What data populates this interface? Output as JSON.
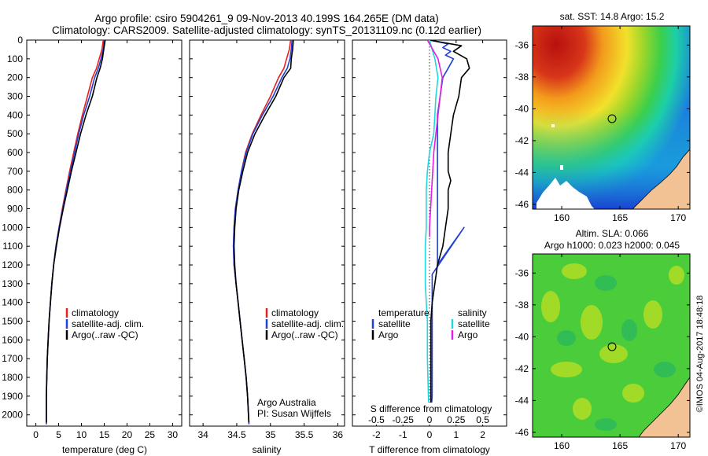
{
  "header": {
    "line1": "Argo profile: csiro 5904261_9 09-Nov-2013 40.199S 164.265E (DM data)",
    "line2": "Climatology: CARS2009. Satellite-adjusted climatology: synTS_20131109.nc (0.12d earlier)"
  },
  "colors": {
    "climatology": "#e8211d",
    "satellite": "#1f3fd6",
    "argo": "#000000",
    "sat_salinity": "#22d6e0",
    "argo_salinity": "#e020e0",
    "land": "#f2c295",
    "map_no_data": "#ffffff"
  },
  "depth_ticks": [
    "0",
    "100",
    "200",
    "300",
    "400",
    "500",
    "600",
    "700",
    "800",
    "900",
    "1000",
    "1100",
    "1200",
    "1300",
    "1400",
    "1500",
    "1600",
    "1700",
    "1800",
    "1900",
    "2000"
  ],
  "chart_data": [
    {
      "type": "line",
      "id": "temperature_profile",
      "xlabel": "temperature (deg C)",
      "ylabel": "",
      "xlim": [
        -2,
        32
      ],
      "ylim": [
        2060,
        0
      ],
      "xticks": [
        "0",
        "5",
        "10",
        "15",
        "20",
        "25",
        "30"
      ],
      "legend": [
        "climatology",
        "satellite-adj. clim.",
        "Argo(..raw -QC)"
      ],
      "legend_position": "bottom-center",
      "series": [
        {
          "name": "climatology",
          "color": "#e8211d",
          "x": [
            14.8,
            14.5,
            13.9,
            13.3,
            12.4,
            11.3,
            10.2,
            9.2,
            8.3,
            7.4,
            6.6,
            5.8,
            5.1,
            4.4,
            3.9,
            3.5,
            3.2,
            2.9,
            2.7,
            2.5,
            2.4,
            2.3,
            2.3
          ],
          "y": [
            0,
            50,
            100,
            150,
            200,
            300,
            400,
            500,
            600,
            700,
            800,
            900,
            1000,
            1100,
            1200,
            1300,
            1400,
            1500,
            1600,
            1700,
            1800,
            1900,
            2050
          ]
        },
        {
          "name": "satellite-adj. clim.",
          "color": "#1f3fd6",
          "x": [
            15.0,
            14.8,
            14.3,
            13.7,
            12.9,
            11.8,
            10.5,
            9.4,
            8.5,
            7.6,
            6.7,
            5.9,
            5.1,
            4.4,
            3.9,
            3.5,
            3.2,
            2.9,
            2.7,
            2.5,
            2.4,
            2.3,
            2.3
          ],
          "y": [
            0,
            50,
            100,
            150,
            200,
            300,
            400,
            500,
            600,
            700,
            800,
            900,
            1000,
            1100,
            1200,
            1300,
            1400,
            1500,
            1600,
            1700,
            1800,
            1900,
            2050
          ]
        },
        {
          "name": "Argo(..raw -QC)",
          "color": "#000000",
          "x": [
            15.2,
            14.9,
            14.6,
            14.1,
            13.4,
            12.4,
            11.0,
            9.8,
            8.8,
            7.8,
            6.9,
            6.0,
            5.2,
            4.5,
            3.9,
            3.5,
            3.2,
            2.9,
            2.7,
            2.5,
            2.4,
            2.3,
            2.3
          ],
          "y": [
            0,
            50,
            100,
            150,
            200,
            300,
            400,
            500,
            600,
            700,
            800,
            900,
            1000,
            1100,
            1200,
            1300,
            1400,
            1500,
            1600,
            1700,
            1800,
            1900,
            2040
          ]
        }
      ]
    },
    {
      "type": "line",
      "id": "salinity_profile",
      "xlabel": "salinity",
      "ylabel": "",
      "xlim": [
        33.8,
        36.1
      ],
      "ylim": [
        2060,
        0
      ],
      "xticks": [
        "34",
        "34.5",
        "35",
        "35.5",
        "36"
      ],
      "legend": [
        "climatology",
        "satellite-adj. clim.",
        "Argo(..raw -QC)"
      ],
      "legend_position": "bottom-right",
      "series": [
        {
          "name": "climatology",
          "color": "#e8211d",
          "x": [
            35.3,
            35.28,
            35.24,
            35.2,
            35.12,
            35.0,
            34.86,
            34.73,
            34.63,
            34.57,
            34.52,
            34.48,
            34.46,
            34.45,
            34.46,
            34.49,
            34.52,
            34.55,
            34.58,
            34.61,
            34.64,
            34.66,
            34.68
          ],
          "y": [
            0,
            50,
            100,
            150,
            200,
            300,
            400,
            500,
            600,
            700,
            800,
            900,
            1000,
            1100,
            1200,
            1300,
            1400,
            1500,
            1600,
            1700,
            1800,
            1900,
            2050
          ]
        },
        {
          "name": "satellite-adj. clim.",
          "color": "#1f3fd6",
          "x": [
            35.32,
            35.31,
            35.29,
            35.25,
            35.17,
            35.04,
            34.88,
            34.74,
            34.64,
            34.57,
            34.52,
            34.48,
            34.46,
            34.45,
            34.46,
            34.49,
            34.52,
            34.55,
            34.58,
            34.61,
            34.64,
            34.66,
            34.68
          ],
          "y": [
            0,
            50,
            100,
            150,
            200,
            300,
            400,
            500,
            600,
            700,
            800,
            900,
            1000,
            1100,
            1200,
            1300,
            1400,
            1500,
            1600,
            1700,
            1800,
            1900,
            2050
          ]
        },
        {
          "name": "Argo(..raw -QC)",
          "color": "#000000",
          "x": [
            35.34,
            35.33,
            35.31,
            35.3,
            35.2,
            35.08,
            34.92,
            34.77,
            34.66,
            34.59,
            34.53,
            34.49,
            34.47,
            34.46,
            34.47,
            34.49,
            34.52,
            34.55,
            34.58,
            34.61,
            34.64,
            34.66,
            34.68
          ],
          "y": [
            0,
            50,
            100,
            150,
            200,
            300,
            400,
            500,
            600,
            700,
            800,
            900,
            1000,
            1100,
            1200,
            1300,
            1400,
            1500,
            1600,
            1700,
            1800,
            1900,
            2040
          ]
        }
      ],
      "annotations": [
        "Argo Australia",
        "PI: Susan Wijffels"
      ]
    },
    {
      "type": "line",
      "id": "difference_profile",
      "xlabel": "T difference from climatology",
      "xlabel_top": "S difference from climatology",
      "xlim_T": [
        -2.9,
        2.9
      ],
      "xticks_T": [
        "-2",
        "-1",
        "0",
        "1",
        "2"
      ],
      "xticks_S": [
        "-0.5",
        "-0.25",
        "0",
        "0.25",
        "0.5"
      ],
      "ylim": [
        2060,
        0
      ],
      "legend_headers": [
        "temperature",
        "salinity"
      ],
      "legend": [
        "satellite",
        "Argo",
        "satellite",
        "Argo"
      ],
      "series": [
        {
          "name": "satellite",
          "quantity": "temperature",
          "color": "#1f3fd6",
          "x": [
            0,
            0.7,
            0.5,
            0.8,
            0.6,
            0.9,
            0.7,
            0.5,
            0.4,
            0.3,
            0.3,
            0.3,
            0.3,
            0.3,
            0.3,
            0.3,
            0.3,
            0.3,
            0.3,
            1.3,
            0.1,
            0.1,
            0.1,
            0.1,
            0.1,
            0.1,
            0.1,
            0.1,
            0.05,
            0.05
          ],
          "y": [
            0,
            20,
            40,
            60,
            80,
            100,
            150,
            200,
            300,
            400,
            500,
            600,
            700,
            800,
            900,
            1000,
            1100,
            1150,
            1200,
            1000,
            1250,
            1300,
            1400,
            1500,
            1600,
            1700,
            1800,
            1900,
            2000,
            2050
          ]
        },
        {
          "name": "Argo",
          "quantity": "temperature",
          "color": "#000000",
          "x": [
            0,
            1.2,
            0.9,
            1.4,
            1.5,
            1.2,
            1.1,
            0.9,
            0.8,
            0.7,
            0.7,
            0.8,
            0.7,
            0.7,
            0.6,
            0.5,
            0.3,
            0.2,
            0.1,
            0.05,
            0.05,
            0.05,
            0.05
          ],
          "y": [
            0,
            30,
            60,
            100,
            150,
            200,
            300,
            400,
            500,
            600,
            700,
            750,
            800,
            900,
            1000,
            1100,
            1200,
            1300,
            1400,
            1500,
            1600,
            1800,
            2050
          ]
        },
        {
          "name": "satellite",
          "quantity": "salinity",
          "color": "#22d6e0",
          "x": [
            0,
            0.05,
            0.08,
            0.06,
            0.05,
            0.04,
            0.0,
            -0.02,
            -0.03,
            -0.03,
            -0.03,
            -0.04,
            -0.04,
            -0.04,
            -0.03,
            -0.02,
            -0.02,
            -0.01,
            0
          ],
          "y": [
            0,
            100,
            200,
            300,
            400,
            500,
            600,
            700,
            800,
            900,
            1000,
            1100,
            1200,
            1300,
            1400,
            1500,
            1700,
            1900,
            2050
          ]
        },
        {
          "name": "Argo",
          "quantity": "salinity",
          "color": "#e020e0",
          "x": [
            -0.02,
            0.02,
            0.08,
            0.12,
            0.1,
            0.08,
            0.06,
            0.04,
            0.03,
            0.02,
            0.01,
            0,
            0
          ],
          "y": [
            0,
            40,
            100,
            200,
            300,
            400,
            500,
            600,
            700,
            800,
            900,
            1000,
            1050
          ]
        }
      ]
    },
    {
      "type": "heatmap",
      "id": "sst_map",
      "title": "sat. SST: 14.8 Argo: 15.2",
      "xticks": [
        "160",
        "165",
        "170"
      ],
      "xlim": [
        157.5,
        171
      ],
      "yticks": [
        "-36",
        "-38",
        "-40",
        "-42",
        "-44",
        "-46"
      ],
      "ylim": [
        -46.3,
        -34.8
      ],
      "marker": {
        "lon": 164.265,
        "lat": -40.199
      },
      "colorscale": [
        "#1a3fd0",
        "#18a8e8",
        "#23d69a",
        "#5cd23b",
        "#b3dc20",
        "#f5e22a",
        "#f7a01c",
        "#e8521a",
        "#b8100e"
      ]
    },
    {
      "type": "heatmap",
      "id": "sla_map",
      "title": "Altim. SLA: 0.066",
      "subtitle": "Argo h1000: 0.023 h2000: 0.045",
      "xticks": [
        "160",
        "165",
        "170"
      ],
      "xlim": [
        157.5,
        171
      ],
      "yticks": [
        "-36",
        "-38",
        "-40",
        "-42",
        "-44",
        "-46"
      ],
      "ylim": [
        -46.3,
        -34.8
      ],
      "marker": {
        "lon": 164.265,
        "lat": -40.199
      }
    }
  ],
  "credit": "©IMOS 04-Aug-2017 18:48:18"
}
